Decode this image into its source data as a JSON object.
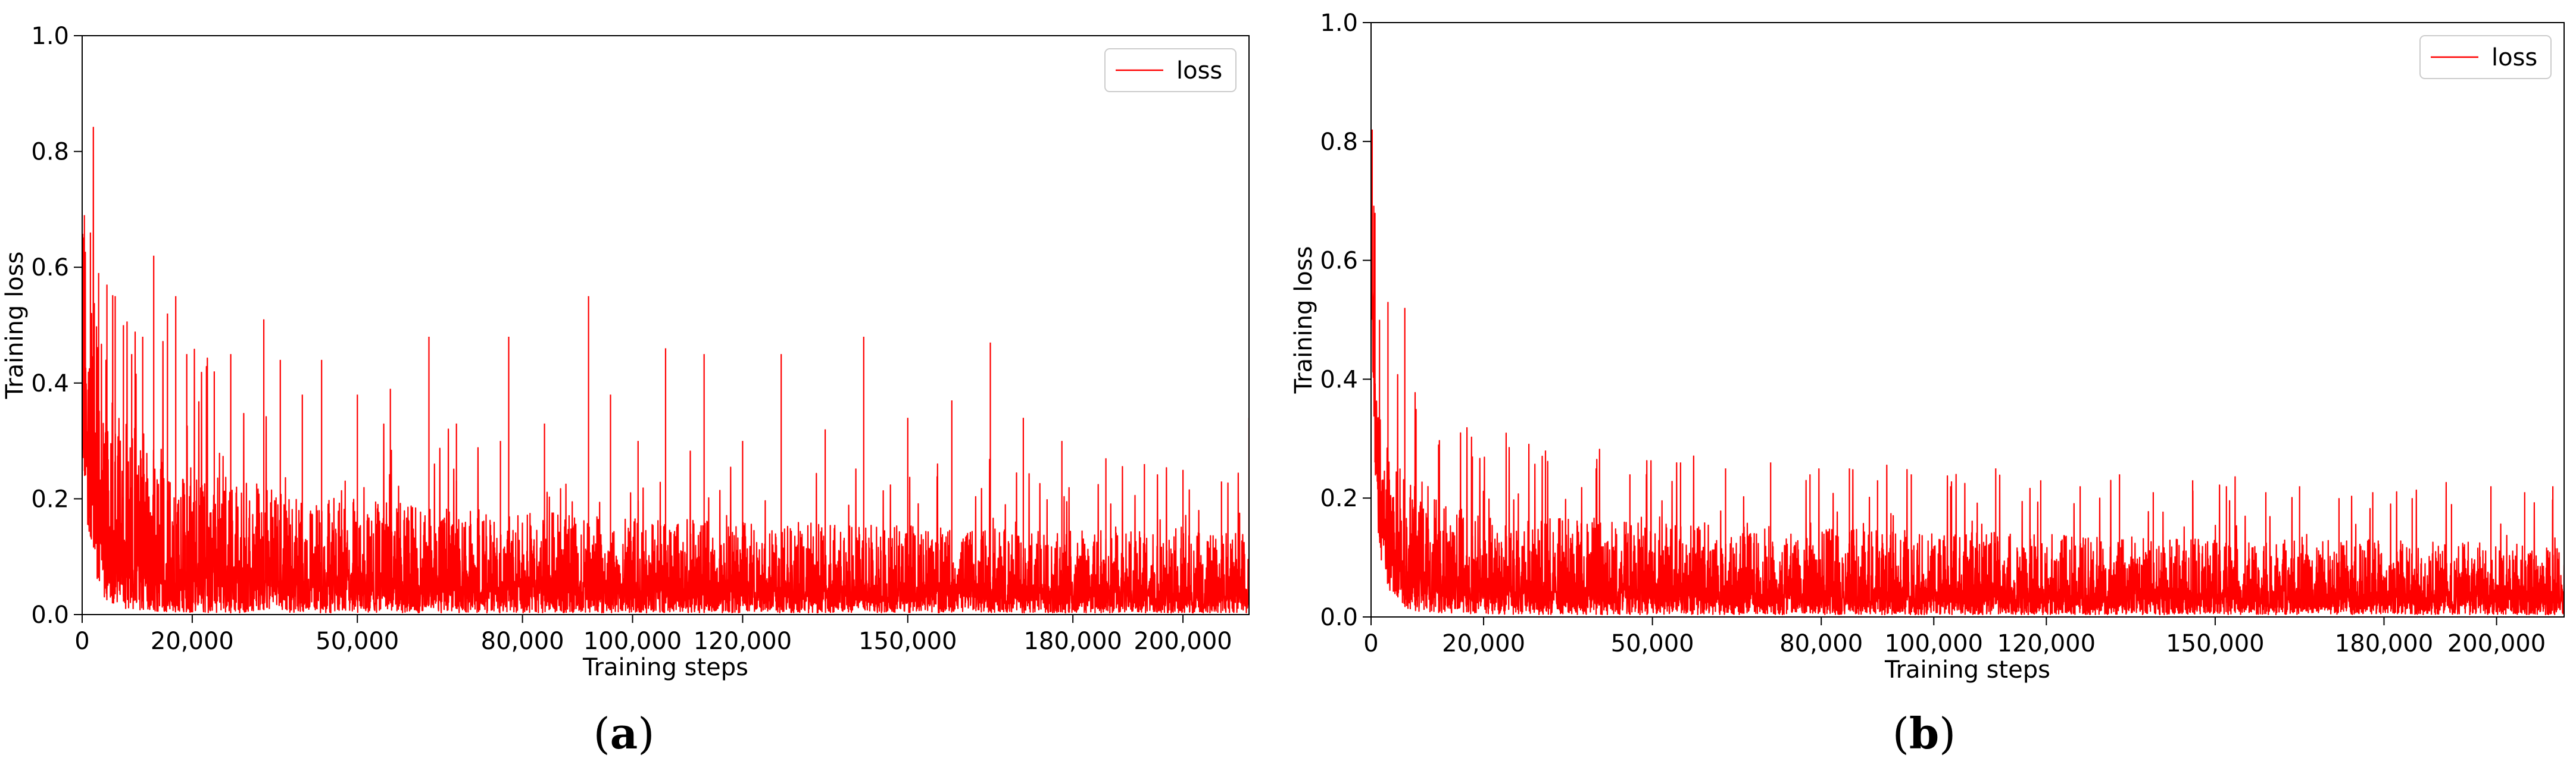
{
  "chart_data": [
    {
      "type": "line",
      "panel_label": "a",
      "caption": {
        "open": "(",
        "letter": "a",
        "close": ")"
      },
      "xlabel": "Training steps",
      "ylabel": "Training loss",
      "xlim": [
        0,
        212000
      ],
      "ylim": [
        0,
        1.0
      ],
      "x_ticks": [
        0,
        20000,
        50000,
        80000,
        100000,
        120000,
        150000,
        180000,
        200000
      ],
      "x_tick_labels": [
        "0",
        "20,000",
        "50,000",
        "80,000",
        "100,000",
        "120,000",
        "150,000",
        "180,000",
        "200,000"
      ],
      "y_ticks": [
        0,
        0.2,
        0.4,
        0.6,
        0.8,
        1.0
      ],
      "y_tick_labels": [
        "0.0",
        "0.2",
        "0.4",
        "0.6",
        "0.8",
        "1.0"
      ],
      "legend": {
        "entries": [
          "loss"
        ],
        "placement": "top-right"
      },
      "grid": false,
      "series": [
        {
          "name": "loss",
          "color": "#ff0000",
          "x": [
            0,
            1000,
            2000,
            3000,
            4000,
            5000,
            6000,
            8000,
            10000,
            12000,
            15000,
            20000,
            25000,
            30000,
            35000,
            40000,
            50000,
            60000,
            70000,
            80000,
            90000,
            100000,
            110000,
            120000,
            130000,
            140000,
            150000,
            160000,
            170000,
            180000,
            190000,
            200000,
            212000
          ],
          "min": [
            0.28,
            0.15,
            0.08,
            0.05,
            0.03,
            0.02,
            0.015,
            0.01,
            0.008,
            0.006,
            0.005,
            0.004,
            0.003,
            0.003,
            0.003,
            0.003,
            0.003,
            0.003,
            0.003,
            0.003,
            0.003,
            0.003,
            0.003,
            0.003,
            0.003,
            0.003,
            0.003,
            0.003,
            0.003,
            0.003,
            0.003,
            0.003,
            0.003
          ],
          "max": [
            0.68,
            0.6,
            0.55,
            0.5,
            0.46,
            0.43,
            0.4,
            0.36,
            0.33,
            0.31,
            0.29,
            0.26,
            0.24,
            0.23,
            0.22,
            0.21,
            0.2,
            0.19,
            0.185,
            0.18,
            0.175,
            0.17,
            0.165,
            0.16,
            0.16,
            0.155,
            0.155,
            0.15,
            0.15,
            0.145,
            0.145,
            0.14,
            0.14
          ],
          "spikes": [
            [
              400,
              0.69
            ],
            [
              1500,
              0.66
            ],
            [
              3000,
              0.59
            ],
            [
              4500,
              0.57
            ],
            [
              6000,
              0.55
            ],
            [
              7500,
              0.5
            ],
            [
              9000,
              0.45
            ],
            [
              11000,
              0.48
            ],
            [
              13000,
              0.62
            ],
            [
              15500,
              0.52
            ],
            [
              17000,
              0.55
            ],
            [
              19000,
              0.45
            ],
            [
              24000,
              0.42
            ],
            [
              27000,
              0.45
            ],
            [
              33000,
              0.51
            ],
            [
              36000,
              0.44
            ],
            [
              40000,
              0.38
            ],
            [
              43500,
              0.44
            ],
            [
              50000,
              0.38
            ],
            [
              56000,
              0.39
            ],
            [
              63000,
              0.48
            ],
            [
              68000,
              0.33
            ],
            [
              76000,
              0.3
            ],
            [
              77500,
              0.48
            ],
            [
              84000,
              0.33
            ],
            [
              92000,
              0.55
            ],
            [
              96000,
              0.38
            ],
            [
              101000,
              0.3
            ],
            [
              106000,
              0.46
            ],
            [
              113000,
              0.45
            ],
            [
              120000,
              0.3
            ],
            [
              127000,
              0.45
            ],
            [
              135000,
              0.32
            ],
            [
              142000,
              0.48
            ],
            [
              150000,
              0.34
            ],
            [
              158000,
              0.37
            ],
            [
              165000,
              0.47
            ],
            [
              171000,
              0.34
            ],
            [
              178000,
              0.3
            ],
            [
              186000,
              0.27
            ],
            [
              193000,
              0.26
            ],
            [
              200000,
              0.25
            ],
            [
              207000,
              0.23
            ],
            [
              212000,
              0.34
            ]
          ]
        }
      ]
    },
    {
      "type": "line",
      "panel_label": "b",
      "caption": {
        "open": "(",
        "letter": "b",
        "close": ")"
      },
      "xlabel": "Training steps",
      "ylabel": "Training loss",
      "xlim": [
        0,
        212000
      ],
      "ylim": [
        0,
        1.0
      ],
      "x_ticks": [
        0,
        20000,
        50000,
        80000,
        100000,
        120000,
        150000,
        180000,
        200000
      ],
      "x_tick_labels": [
        "0",
        "20,000",
        "50,000",
        "80,000",
        "100,000",
        "120,000",
        "150,000",
        "180,000",
        "200,000"
      ],
      "y_ticks": [
        0,
        0.2,
        0.4,
        0.6,
        0.8,
        1.0
      ],
      "y_tick_labels": [
        "0.0",
        "0.2",
        "0.4",
        "0.6",
        "0.8",
        "1.0"
      ],
      "legend": {
        "entries": [
          "loss"
        ],
        "placement": "top-right"
      },
      "grid": false,
      "series": [
        {
          "name": "loss",
          "color": "#ff0000",
          "x": [
            0,
            500,
            1000,
            2000,
            3000,
            4000,
            5000,
            6000,
            8000,
            10000,
            15000,
            20000,
            30000,
            40000,
            50000,
            60000,
            80000,
            100000,
            120000,
            140000,
            160000,
            180000,
            200000,
            212000
          ],
          "min": [
            0.6,
            0.3,
            0.15,
            0.08,
            0.05,
            0.03,
            0.02,
            0.015,
            0.01,
            0.008,
            0.006,
            0.005,
            0.004,
            0.004,
            0.004,
            0.004,
            0.004,
            0.004,
            0.004,
            0.004,
            0.004,
            0.004,
            0.004,
            0.004
          ],
          "max": [
            0.8,
            0.55,
            0.4,
            0.33,
            0.3,
            0.28,
            0.26,
            0.24,
            0.22,
            0.2,
            0.19,
            0.18,
            0.17,
            0.16,
            0.16,
            0.155,
            0.15,
            0.145,
            0.14,
            0.135,
            0.13,
            0.13,
            0.125,
            0.12
          ],
          "spikes": [
            [
              200,
              0.82
            ],
            [
              700,
              0.68
            ],
            [
              1500,
              0.5
            ],
            [
              3000,
              0.53
            ],
            [
              6000,
              0.52
            ],
            [
              8000,
              0.35
            ],
            [
              12000,
              0.29
            ],
            [
              18000,
              0.27
            ],
            [
              24000,
              0.31
            ],
            [
              31000,
              0.28
            ],
            [
              40000,
              0.25
            ],
            [
              46000,
              0.24
            ],
            [
              55000,
              0.26
            ],
            [
              63000,
              0.25
            ],
            [
              71000,
              0.26
            ],
            [
              78000,
              0.24
            ],
            [
              85000,
              0.25
            ],
            [
              90000,
              0.23
            ],
            [
              96000,
              0.24
            ],
            [
              103000,
              0.22
            ],
            [
              111000,
              0.25
            ],
            [
              119000,
              0.23
            ],
            [
              126000,
              0.22
            ],
            [
              133000,
              0.24
            ],
            [
              139000,
              0.21
            ],
            [
              146000,
              0.23
            ],
            [
              152000,
              0.22
            ],
            [
              159000,
              0.21
            ],
            [
              165000,
              0.22
            ],
            [
              172000,
              0.2
            ],
            [
              178000,
              0.21
            ],
            [
              185000,
              0.2
            ],
            [
              192000,
              0.19
            ],
            [
              199000,
              0.22
            ],
            [
              205000,
              0.21
            ],
            [
              210000,
              0.22
            ]
          ]
        }
      ]
    }
  ]
}
